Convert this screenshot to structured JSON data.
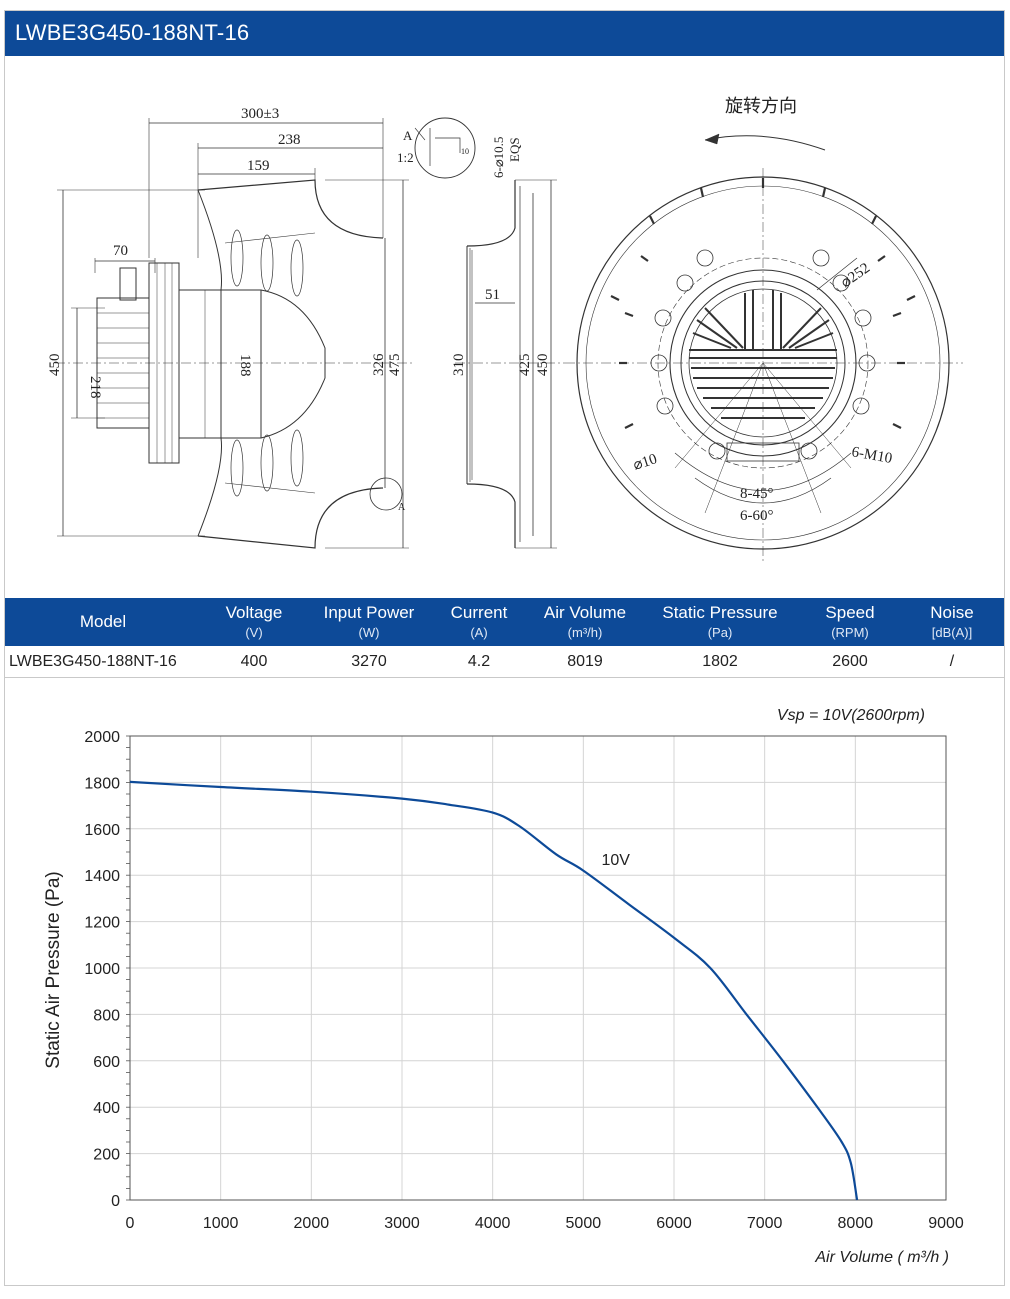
{
  "header": {
    "title": "LWBE3G450-188NT-16"
  },
  "drawing": {
    "side": {
      "d300": "300±3",
      "d238": "238",
      "d159": "159",
      "d70": "70",
      "d450": "450",
      "d218": "218",
      "d188": "188",
      "d326": "326",
      "d475": "475"
    },
    "detail": {
      "label": "A",
      "scale": "1:2",
      "holes": "6-⌀10.5",
      "eqs": "EQS",
      "ten": "10",
      "a": "A"
    },
    "profile": {
      "d310": "310",
      "d51": "51",
      "d425": "425",
      "d450": "450"
    },
    "front": {
      "rotation": "旋转方向",
      "d252": "⌀252",
      "d10": "⌀10",
      "m10": "6-M10",
      "a45": "8-45°",
      "a60": "6-60°"
    }
  },
  "table": {
    "columns": [
      {
        "name": "Model",
        "unit": ""
      },
      {
        "name": "Voltage",
        "unit": "(V)"
      },
      {
        "name": "Input Power",
        "unit": "(W)"
      },
      {
        "name": "Current",
        "unit": "(A)"
      },
      {
        "name": "Air Volume",
        "unit": "(m³/h)"
      },
      {
        "name": "Static Pressure",
        "unit": "(Pa)"
      },
      {
        "name": "Speed",
        "unit": "(RPM)"
      },
      {
        "name": "Noise",
        "unit": "[dB(A)]"
      }
    ],
    "row": [
      "LWBE3G450-188NT-16",
      "400",
      "3270",
      "4.2",
      "8019",
      "1802",
      "2600",
      "/"
    ]
  },
  "chart_data": {
    "type": "line",
    "title": "",
    "annotation": "Vsp = 10V(2600rpm)",
    "xlabel": "Air Volume ( m³/h )",
    "ylabel": "Static Air Pressure  (Pa)",
    "xlim": [
      0,
      9000
    ],
    "ylim": [
      0,
      2000
    ],
    "xticks": [
      0,
      1000,
      2000,
      3000,
      4000,
      5000,
      6000,
      7000,
      8000,
      9000
    ],
    "yticks": [
      0,
      200,
      400,
      600,
      800,
      1000,
      1200,
      1400,
      1600,
      1800,
      2000
    ],
    "grid": true,
    "series": [
      {
        "name": "10V",
        "color": "#0d4a98",
        "x": [
          0,
          1000,
          2000,
          3000,
          3500,
          4000,
          4300,
          4700,
          5000,
          5500,
          6000,
          6400,
          6800,
          7200,
          7600,
          7850,
          7950,
          8019
        ],
        "y": [
          1802,
          1780,
          1760,
          1730,
          1705,
          1670,
          1610,
          1490,
          1420,
          1275,
          1130,
          1000,
          800,
          600,
          390,
          250,
          160,
          0
        ]
      }
    ]
  }
}
